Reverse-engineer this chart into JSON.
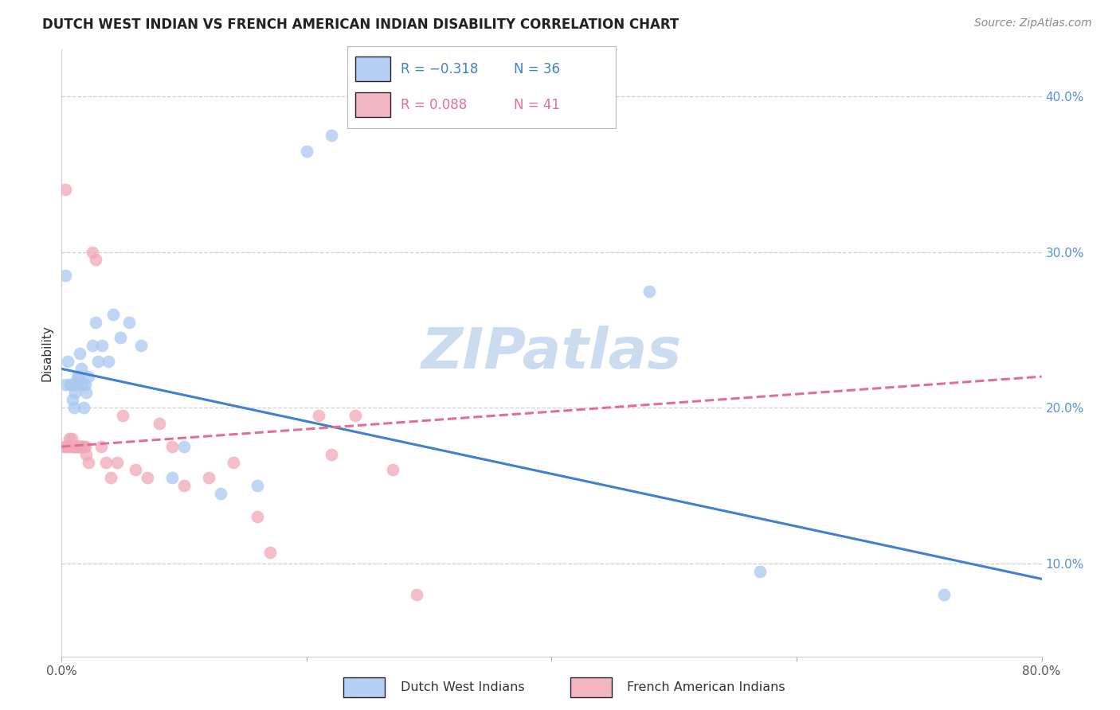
{
  "title": "DUTCH WEST INDIAN VS FRENCH AMERICAN INDIAN DISABILITY CORRELATION CHART",
  "source": "Source: ZipAtlas.com",
  "ylabel": "Disability",
  "watermark": "ZIPatlas",
  "xlim": [
    0.0,
    0.8
  ],
  "ylim": [
    0.04,
    0.43
  ],
  "xtick_positions": [
    0.0,
    0.2,
    0.4,
    0.6,
    0.8
  ],
  "xticklabels": [
    "0.0%",
    "",
    "",
    "",
    "80.0%"
  ],
  "ytick_right_positions": [
    0.1,
    0.2,
    0.3,
    0.4
  ],
  "ytick_right_labels": [
    "10.0%",
    "20.0%",
    "30.0%",
    "40.0%"
  ],
  "grid_color": "#d0d0d0",
  "blue_color": "#a8c8f0",
  "pink_color": "#f0a8b8",
  "blue_line_color": "#4080d0",
  "pink_line_color": "#e07090",
  "blue_points_x": [
    0.003,
    0.005,
    0.007,
    0.008,
    0.009,
    0.01,
    0.011,
    0.012,
    0.013,
    0.014,
    0.015,
    0.016,
    0.017,
    0.018,
    0.019,
    0.02,
    0.022,
    0.025,
    0.028,
    0.03,
    0.033,
    0.038,
    0.042,
    0.048,
    0.055,
    0.065,
    0.09,
    0.1,
    0.13,
    0.16,
    0.2,
    0.22,
    0.48,
    0.57,
    0.72,
    0.003
  ],
  "blue_points_y": [
    0.215,
    0.23,
    0.215,
    0.215,
    0.205,
    0.2,
    0.21,
    0.215,
    0.22,
    0.22,
    0.235,
    0.225,
    0.215,
    0.2,
    0.215,
    0.21,
    0.22,
    0.24,
    0.255,
    0.23,
    0.24,
    0.23,
    0.26,
    0.245,
    0.255,
    0.24,
    0.155,
    0.175,
    0.145,
    0.15,
    0.365,
    0.375,
    0.275,
    0.095,
    0.08,
    0.285
  ],
  "pink_points_x": [
    0.002,
    0.004,
    0.005,
    0.006,
    0.007,
    0.008,
    0.009,
    0.01,
    0.011,
    0.012,
    0.013,
    0.014,
    0.015,
    0.016,
    0.017,
    0.018,
    0.019,
    0.02,
    0.022,
    0.025,
    0.028,
    0.032,
    0.036,
    0.04,
    0.045,
    0.05,
    0.06,
    0.07,
    0.08,
    0.09,
    0.1,
    0.12,
    0.14,
    0.16,
    0.17,
    0.21,
    0.22,
    0.24,
    0.27,
    0.29,
    0.003
  ],
  "pink_points_y": [
    0.175,
    0.175,
    0.175,
    0.18,
    0.175,
    0.18,
    0.175,
    0.175,
    0.175,
    0.175,
    0.175,
    0.175,
    0.175,
    0.175,
    0.175,
    0.175,
    0.175,
    0.17,
    0.165,
    0.3,
    0.295,
    0.175,
    0.165,
    0.155,
    0.165,
    0.195,
    0.16,
    0.155,
    0.19,
    0.175,
    0.15,
    0.155,
    0.165,
    0.13,
    0.107,
    0.195,
    0.17,
    0.195,
    0.16,
    0.08,
    0.34
  ],
  "title_fontsize": 12,
  "axis_label_fontsize": 11,
  "tick_fontsize": 11,
  "source_fontsize": 10,
  "watermark_fontsize": 52,
  "watermark_color": "#ccdcf0",
  "background_color": "#ffffff",
  "blue_R": "R = −0.318",
  "blue_N": "N = 36",
  "pink_R": "R = 0.088",
  "pink_N": "N = 41"
}
